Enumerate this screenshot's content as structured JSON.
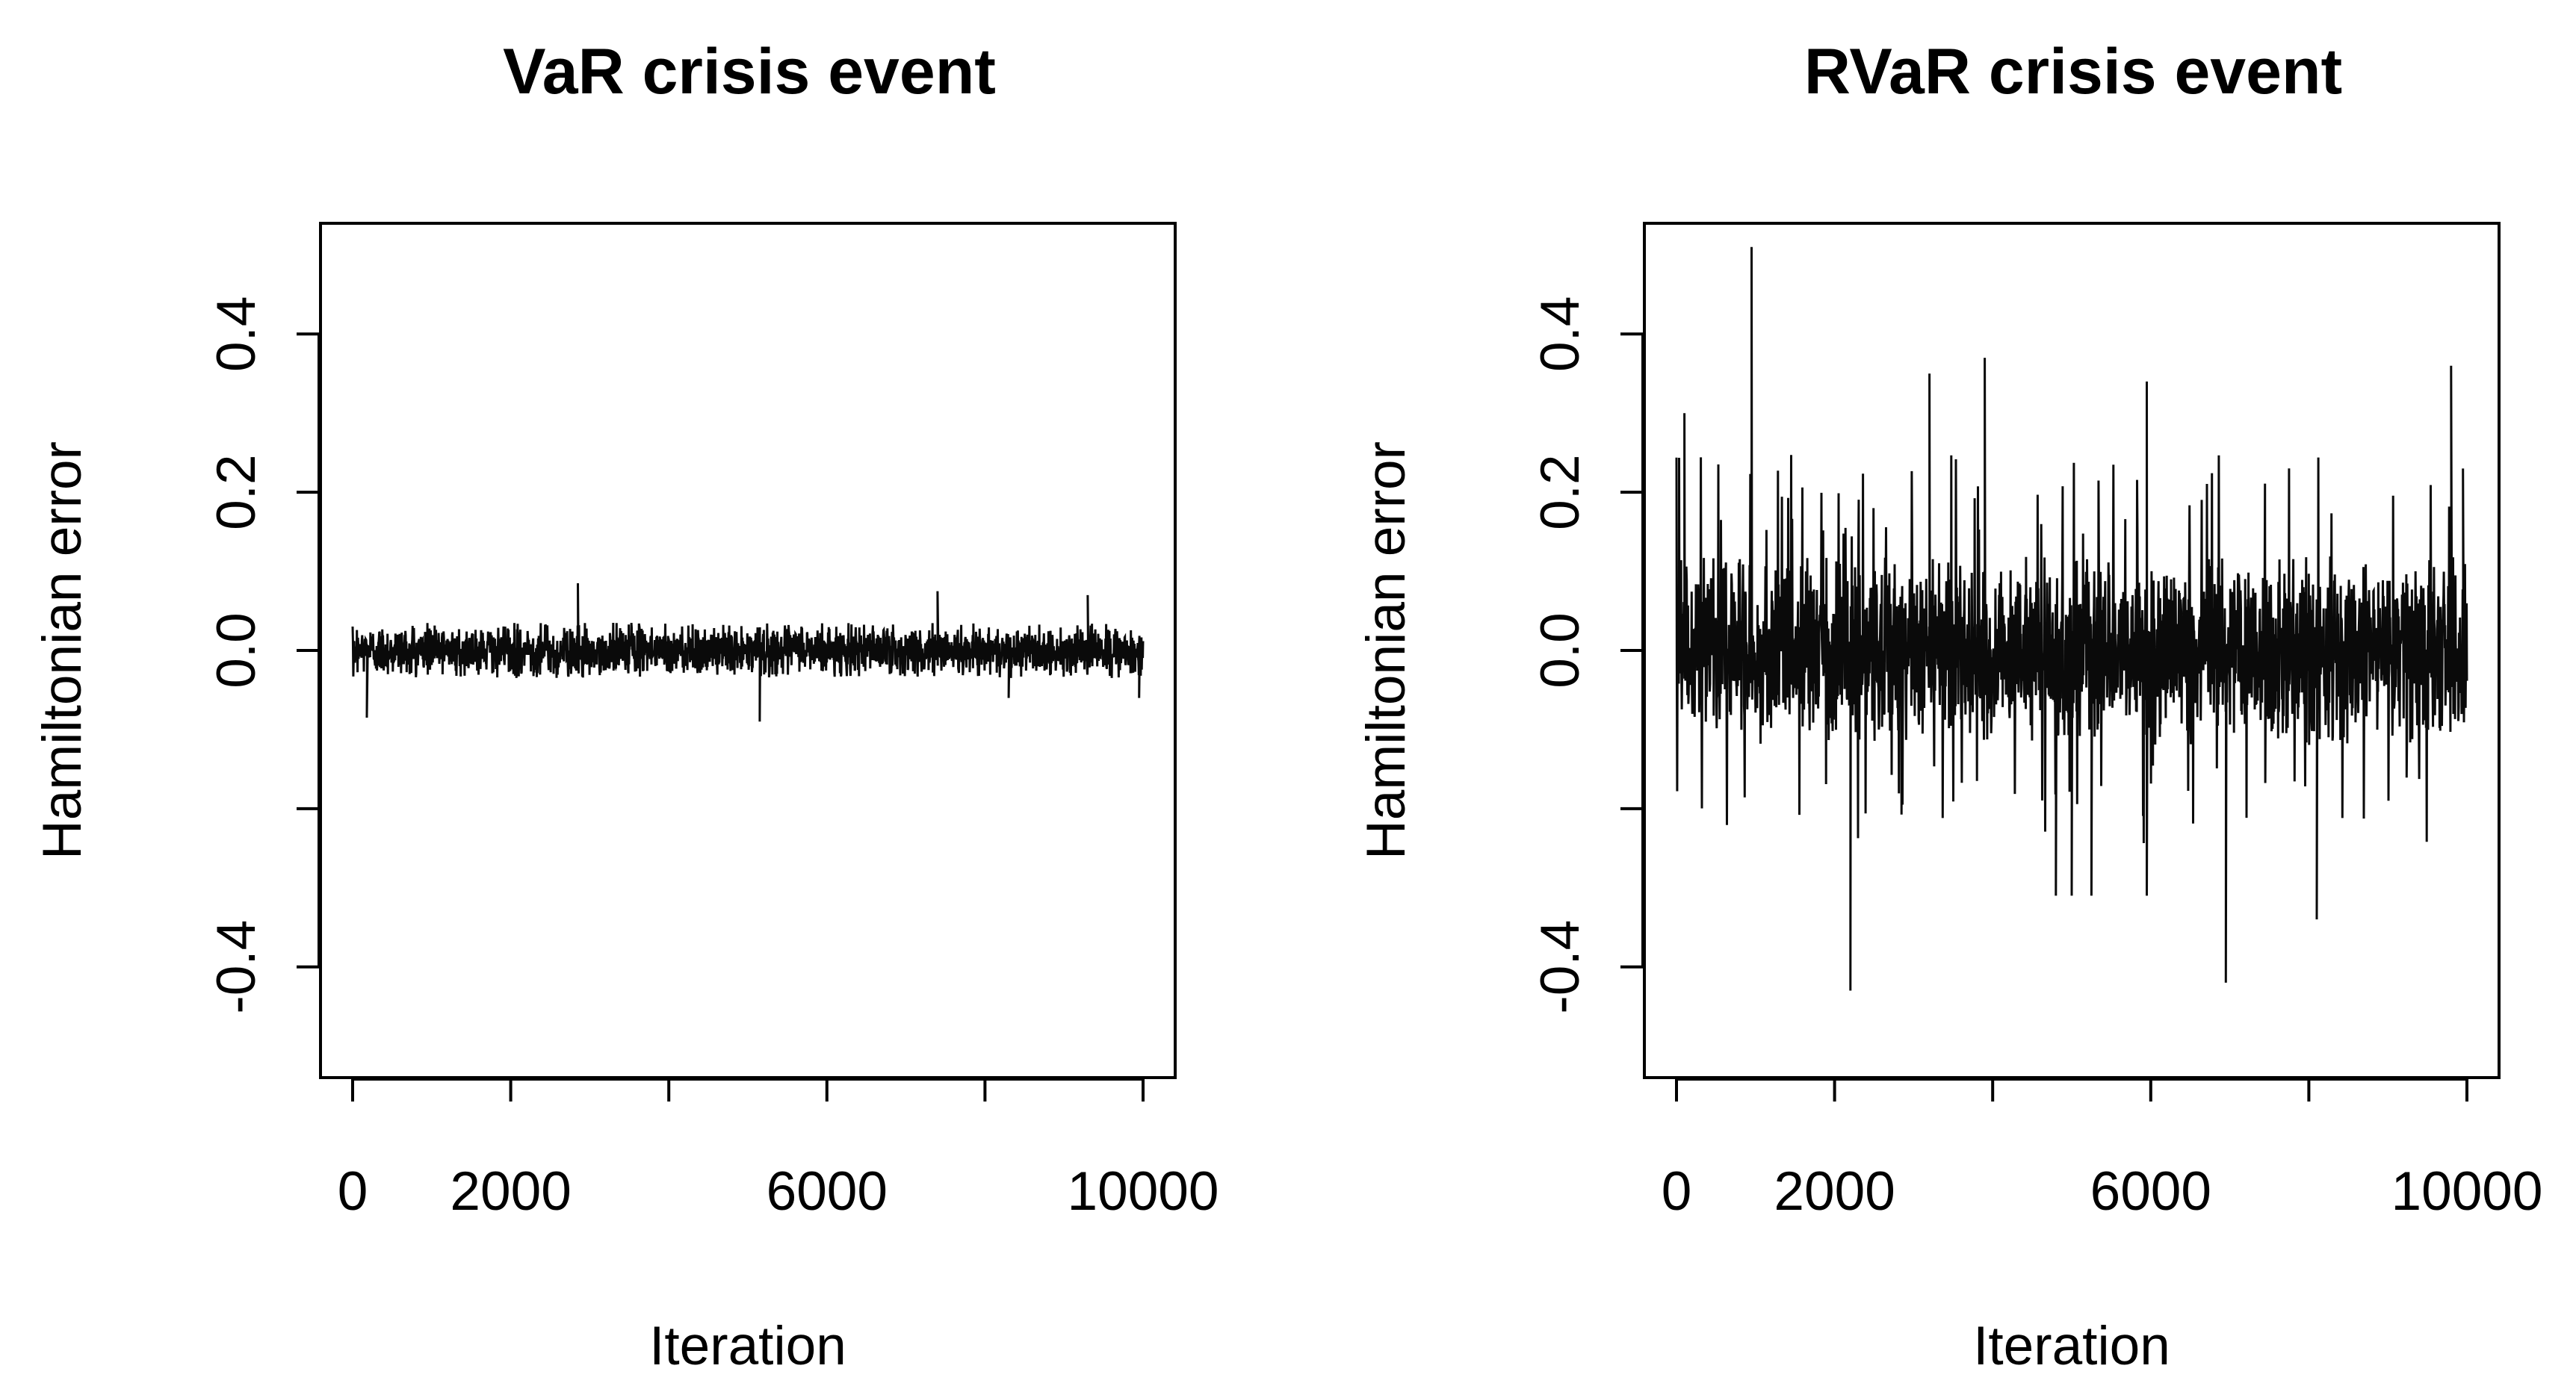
{
  "chart_data": [
    {
      "type": "line",
      "title": "VaR crisis event",
      "xlabel": "Iteration",
      "ylabel": "Hamiltonian error",
      "xlim": [
        0,
        10000
      ],
      "ylim": [
        -0.54,
        0.54
      ],
      "x_ticks": [
        0,
        2000,
        4000,
        6000,
        8000,
        10000
      ],
      "x_tick_labels": [
        "0",
        "2000",
        "",
        "6000",
        "",
        "10000"
      ],
      "y_ticks": [
        -0.4,
        -0.2,
        0.0,
        0.2,
        0.4
      ],
      "y_tick_labels": [
        "-0.4",
        "",
        "0.0",
        "0.2",
        "0.4"
      ],
      "grid": false,
      "series": [
        {
          "n": 10000,
          "center": 0.0,
          "typical_abs_max": 0.035,
          "extremes": [
            {
              "x": 180,
              "y": -0.085
            },
            {
              "x": 2850,
              "y": 0.085
            },
            {
              "x": 5150,
              "y": -0.09
            },
            {
              "x": 7400,
              "y": 0.075
            },
            {
              "x": 9300,
              "y": 0.07
            },
            {
              "x": 8300,
              "y": -0.06
            },
            {
              "x": 9950,
              "y": -0.06
            }
          ]
        }
      ]
    },
    {
      "type": "line",
      "title": "RVaR crisis event",
      "xlabel": "Iteration",
      "ylabel": "Hamiltonian error",
      "xlim": [
        0,
        10000
      ],
      "ylim": [
        -0.54,
        0.54
      ],
      "x_ticks": [
        0,
        2000,
        4000,
        6000,
        8000,
        10000
      ],
      "x_tick_labels": [
        "0",
        "2000",
        "",
        "6000",
        "",
        "10000"
      ],
      "y_ticks": [
        -0.4,
        -0.2,
        0.0,
        0.2,
        0.4
      ],
      "y_tick_labels": [
        "-0.4",
        "",
        "0.0",
        "0.2",
        "0.4"
      ],
      "grid": false,
      "series": [
        {
          "n": 10000,
          "center": 0.0,
          "typical_abs_max": 0.12,
          "extremes": [
            {
              "x": 100,
              "y": 0.3
            },
            {
              "x": 950,
              "y": 0.51
            },
            {
              "x": 2200,
              "y": -0.43
            },
            {
              "x": 3200,
              "y": 0.35
            },
            {
              "x": 3900,
              "y": 0.37
            },
            {
              "x": 4800,
              "y": -0.31
            },
            {
              "x": 5000,
              "y": -0.31
            },
            {
              "x": 5250,
              "y": -0.31
            },
            {
              "x": 5950,
              "y": 0.34
            },
            {
              "x": 5950,
              "y": -0.31
            },
            {
              "x": 6950,
              "y": -0.42
            },
            {
              "x": 8100,
              "y": -0.34
            },
            {
              "x": 9800,
              "y": 0.36
            },
            {
              "x": 9950,
              "y": 0.23
            }
          ]
        }
      ]
    }
  ]
}
